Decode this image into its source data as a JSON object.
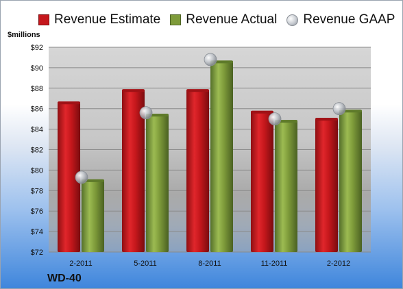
{
  "chart_data": {
    "type": "bar",
    "title": "",
    "unit_label": "$millions",
    "company": "WD-40",
    "categories": [
      "2-2011",
      "5-2011",
      "8-2011",
      "11-2011",
      "2-2012"
    ],
    "series": [
      {
        "name": "Revenue Estimate",
        "kind": "bar",
        "color": "#c5171c",
        "values": [
          86.7,
          87.9,
          87.9,
          85.8,
          85.1
        ]
      },
      {
        "name": "Revenue Actual",
        "kind": "bar",
        "color": "#7e9b3a",
        "values": [
          79.1,
          85.5,
          90.7,
          84.9,
          85.9
        ]
      },
      {
        "name": "Revenue GAAP",
        "kind": "marker",
        "color": "#c8ccd2",
        "values": [
          79.3,
          85.6,
          90.8,
          85.0,
          86.0
        ]
      }
    ],
    "ylim": [
      72,
      92
    ],
    "yticks": [
      "$72",
      "$74",
      "$76",
      "$78",
      "$80",
      "$82",
      "$84",
      "$86",
      "$88",
      "$90",
      "$92"
    ],
    "grid": true,
    "legend_position": "top"
  }
}
